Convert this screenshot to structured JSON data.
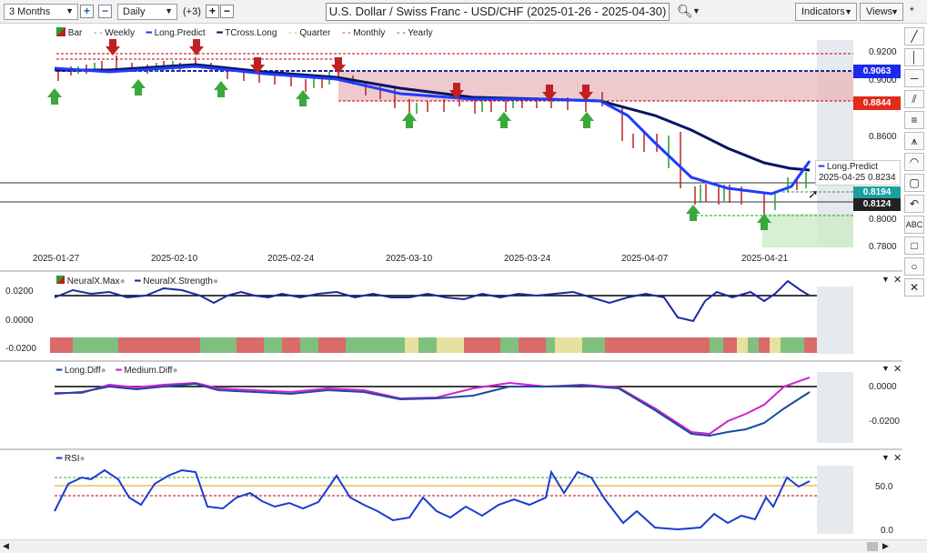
{
  "toolbar": {
    "period": "3 Months",
    "interval": "Daily",
    "extra_count": "(+3)",
    "title": "U.S. Dollar / Swiss Franc - USD/CHF (2025-01-26 - 2025-04-30)",
    "indicators_label": "Indicators",
    "views_label": "Views",
    "pin": "*"
  },
  "main_legend": [
    {
      "label": "Bar",
      "color": "#b22"
    },
    {
      "label": "Weekly",
      "color": "#2a9d2a"
    },
    {
      "label": "Long.Predict",
      "color": "#1e3cff"
    },
    {
      "label": "TCross.Long",
      "color": "#0a1560"
    },
    {
      "label": "Quarter",
      "color": "#e0a000"
    },
    {
      "label": "Monthly",
      "color": "#c00000"
    },
    {
      "label": "Yearly",
      "color": "#1a2a9a"
    }
  ],
  "price_axis": {
    "ticks": [
      "0.9200",
      "0.9000",
      "0.8600",
      "0.8000",
      "0.7800"
    ]
  },
  "price_labels": [
    {
      "text": "0.9063",
      "bg": "#1a2aee"
    },
    {
      "text": "0.8844",
      "bg": "#e12b1b"
    },
    {
      "text": "0.8194",
      "bg": "#1aa0a0"
    },
    {
      "text": "0.8124",
      "bg": "#222222"
    }
  ],
  "tooltip": {
    "name": "Long.Predict",
    "date": "2025-04-25",
    "value": "0.8234"
  },
  "date_axis": [
    "2025-01-27",
    "2025-02-10",
    "2025-02-24",
    "2025-03-10",
    "2025-03-24",
    "2025-04-07",
    "2025-04-21"
  ],
  "neural": {
    "legend": [
      "NeuralX.Max",
      "NeuralX.Strength"
    ],
    "ticks": [
      "0.0200",
      "0.0000",
      "-0.0200"
    ]
  },
  "diff": {
    "legend": [
      "Long.Diff",
      "Medium.Diff"
    ],
    "ticks": [
      "0.0000",
      "-0.0200"
    ]
  },
  "rsi": {
    "legend": [
      "RSI"
    ],
    "ticks": [
      "50.0",
      "0.0"
    ]
  },
  "colors": {
    "long_predict": "#1e3cff",
    "tcross": "#0a1560",
    "monthly": "#c00000",
    "yearly": "#1a2a9a",
    "medium_diff": "#d020d0",
    "rsi": "#1a3cd0"
  },
  "chart_data": [
    {
      "type": "line",
      "panel": "price",
      "x": [
        "2025-01-27",
        "2025-02-10",
        "2025-02-24",
        "2025-03-10",
        "2025-03-24",
        "2025-04-07",
        "2025-04-14",
        "2025-04-21",
        "2025-04-25"
      ],
      "series": [
        {
          "name": "Long.Predict",
          "values": [
            0.906,
            0.9085,
            0.904,
            0.897,
            0.888,
            0.856,
            0.8235,
            0.82,
            0.8234
          ]
        },
        {
          "name": "TCross.Long",
          "values": [
            0.907,
            0.908,
            0.904,
            0.895,
            0.888,
            0.87,
            0.845,
            0.83,
            0.829
          ]
        }
      ],
      "ylim": [
        0.775,
        0.925
      ]
    },
    {
      "type": "line",
      "panel": "neural",
      "series": [
        {
          "name": "NeuralX.Strength",
          "values": [
            0.0,
            0.002,
            0.001,
            -0.001,
            0.001,
            0.0,
            -0.003,
            0.004,
            0.0
          ]
        }
      ],
      "ylim": [
        -0.02,
        0.02
      ]
    },
    {
      "type": "line",
      "panel": "diff",
      "series": [
        {
          "name": "Long.Diff",
          "values": [
            -0.001,
            0.001,
            -0.004,
            -0.005,
            0.0,
            0.0,
            -0.028,
            -0.018,
            -0.003
          ]
        },
        {
          "name": "Medium.Diff",
          "values": [
            -0.001,
            0.002,
            -0.005,
            -0.005,
            0.0,
            0.0,
            -0.028,
            -0.012,
            0.003
          ]
        }
      ],
      "ylim": [
        -0.03,
        0.005
      ]
    },
    {
      "type": "line",
      "panel": "rsi",
      "series": [
        {
          "name": "RSI",
          "values": [
            40,
            58,
            55,
            30,
            50,
            25,
            5,
            10,
            58
          ]
        }
      ],
      "ylim": [
        0,
        80
      ]
    }
  ]
}
